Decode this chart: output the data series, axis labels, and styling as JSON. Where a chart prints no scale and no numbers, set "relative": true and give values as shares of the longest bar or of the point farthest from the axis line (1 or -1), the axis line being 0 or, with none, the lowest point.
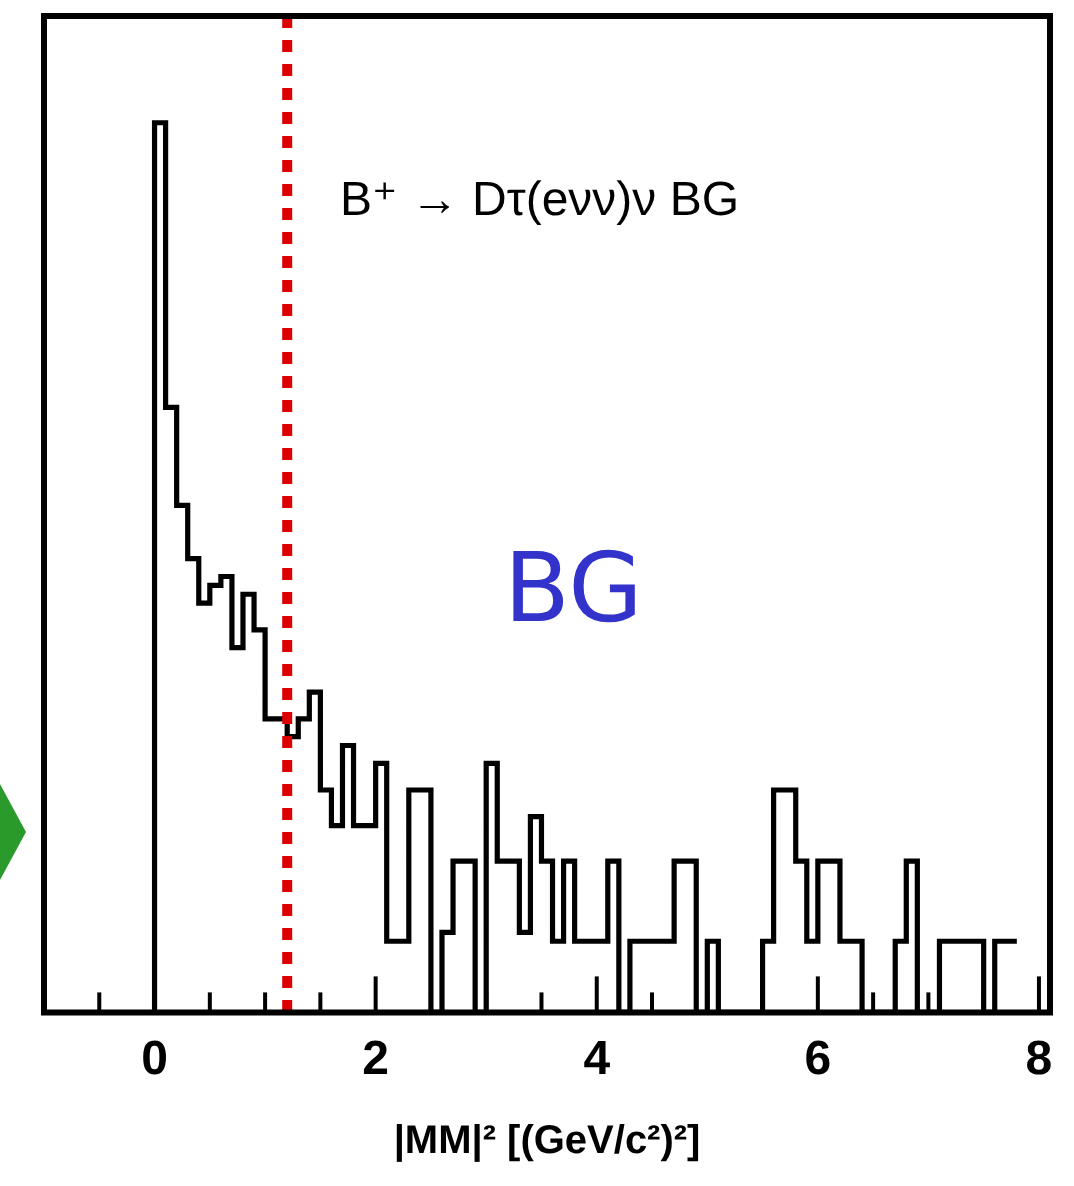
{
  "chart_data": {
    "type": "step",
    "relative": true,
    "xlabel": "|MM|² [(GeV/c²)²]",
    "annotations": [
      "B⁺ → Dτ(eνν)ν BG",
      "BG"
    ],
    "x": [
      0,
      0.1,
      0.2,
      0.3,
      0.4,
      0.5,
      0.6,
      0.7,
      0.8,
      0.9,
      1,
      1.1,
      1.2,
      1.3,
      1.4,
      1.5,
      1.6,
      1.7,
      1.8,
      1.9,
      2,
      2.1,
      2.2,
      2.3,
      2.4,
      2.5,
      2.6,
      2.7,
      2.8,
      2.9,
      3,
      3.1,
      3.2,
      3.3,
      3.4,
      3.5,
      3.6,
      3.7,
      3.8,
      3.9,
      4,
      4.1,
      4.2,
      4.3,
      4.4,
      4.5,
      4.6,
      4.7,
      4.8,
      4.9,
      5,
      5.1,
      5.2,
      5.3,
      5.4,
      5.5,
      5.6,
      5.7,
      5.8,
      5.9,
      6,
      6.1,
      6.2,
      6.3,
      6.4,
      6.5,
      6.6,
      6.7,
      6.8,
      6.9,
      7,
      7.1,
      7.2,
      7.3,
      7.4,
      7.5,
      7.6,
      7.7,
      7.8
    ],
    "values": [
      0,
      1.0,
      0.68,
      0.57,
      0.51,
      0.46,
      0.48,
      0.49,
      0.41,
      0.47,
      0.43,
      0.33,
      0.33,
      0.31,
      0.33,
      0.36,
      0.25,
      0.21,
      0.3,
      0.21,
      0.21,
      0.28,
      0.08,
      0.08,
      0.25,
      0.25,
      0,
      0.09,
      0.17,
      0.17,
      0,
      0.28,
      0.17,
      0.17,
      0.09,
      0.22,
      0.17,
      0.08,
      0.17,
      0.08,
      0.08,
      0.08,
      0.17,
      0,
      0.08,
      0.08,
      0.08,
      0.08,
      0.17,
      0.17,
      0,
      0.08,
      0,
      0,
      0,
      0,
      0.08,
      0.25,
      0.25,
      0.17,
      0.08,
      0.17,
      0.17,
      0.08,
      0.08,
      0,
      0,
      0,
      0.08,
      0.17,
      0,
      0,
      0.08,
      0.08,
      0.08,
      0.08,
      0,
      0.08,
      0.08
    ],
    "color": "#000000",
    "xlim": [
      -1,
      8.1
    ],
    "xticks": [
      0,
      2,
      4,
      6,
      8
    ],
    "ref_lines": [
      {
        "axis": "x",
        "value": 1.2,
        "color": "#dd0000",
        "line_style": "dotted"
      }
    ],
    "grid": false,
    "legend": false
  }
}
